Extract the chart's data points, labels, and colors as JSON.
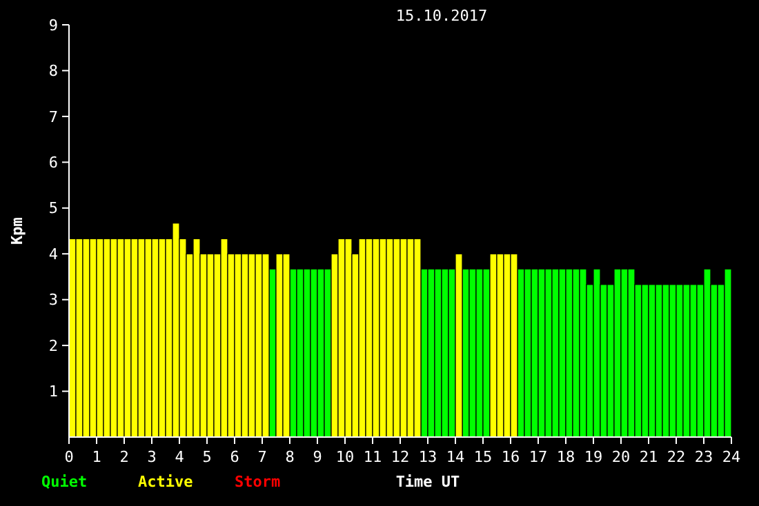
{
  "chart_data": {
    "type": "bar",
    "title": "15.10.2017",
    "xlabel": "Time UT",
    "ylabel": "Kpm",
    "x": [
      0.125,
      0.375,
      0.625,
      0.875,
      1.125,
      1.375,
      1.625,
      1.875,
      2.125,
      2.375,
      2.625,
      2.875,
      3.125,
      3.375,
      3.625,
      3.875,
      4.125,
      4.375,
      4.625,
      4.875,
      5.125,
      5.375,
      5.625,
      5.875,
      6.125,
      6.375,
      6.625,
      6.875,
      7.125,
      7.375,
      7.625,
      7.875,
      8.125,
      8.375,
      8.625,
      8.875,
      9.125,
      9.375,
      9.625,
      9.875,
      10.125,
      10.375,
      10.625,
      10.875,
      11.125,
      11.375,
      11.625,
      11.875,
      12.125,
      12.375,
      12.625,
      12.875,
      13.125,
      13.375,
      13.625,
      13.875,
      14.125,
      14.375,
      14.625,
      14.875,
      15.125,
      15.375,
      15.625,
      15.875,
      16.125,
      16.375,
      16.625,
      16.875,
      17.125,
      17.375,
      17.625,
      17.875,
      18.125,
      18.375,
      18.625,
      18.875,
      19.125,
      19.375,
      19.625,
      19.875,
      20.125,
      20.375,
      20.625,
      20.875,
      21.125,
      21.375,
      21.625,
      21.875,
      22.125,
      22.375,
      22.625,
      22.875,
      23.125,
      23.375,
      23.625,
      23.875
    ],
    "series": [
      {
        "name": "Quiet",
        "color": "#00ff00",
        "values": [
          null,
          null,
          null,
          null,
          null,
          null,
          null,
          null,
          null,
          null,
          null,
          null,
          null,
          null,
          null,
          null,
          null,
          null,
          null,
          null,
          null,
          null,
          null,
          null,
          null,
          null,
          null,
          null,
          null,
          3.67,
          null,
          null,
          3.67,
          3.67,
          3.67,
          3.67,
          3.67,
          3.67,
          null,
          null,
          null,
          null,
          null,
          null,
          null,
          null,
          null,
          null,
          null,
          null,
          null,
          3.67,
          3.67,
          3.67,
          3.67,
          3.67,
          null,
          3.67,
          3.67,
          3.67,
          3.67,
          null,
          null,
          null,
          null,
          3.67,
          3.67,
          3.67,
          3.67,
          3.67,
          3.67,
          3.67,
          3.67,
          3.67,
          3.67,
          3.33,
          3.67,
          3.33,
          3.33,
          3.67,
          3.67,
          3.67,
          3.33,
          3.33,
          3.33,
          3.33,
          3.33,
          3.33,
          3.33,
          3.33,
          3.33,
          3.33,
          3.67,
          3.33,
          3.33,
          3.67
        ]
      },
      {
        "name": "Active",
        "color": "#ffff00",
        "values": [
          4.33,
          4.33,
          4.33,
          4.33,
          4.33,
          4.33,
          4.33,
          4.33,
          4.33,
          4.33,
          4.33,
          4.33,
          4.33,
          4.33,
          4.33,
          4.67,
          4.33,
          4.0,
          4.33,
          4.0,
          4.0,
          4.0,
          4.33,
          4.0,
          4.0,
          4.0,
          4.0,
          4.0,
          4.0,
          null,
          4.0,
          4.0,
          null,
          null,
          null,
          null,
          null,
          null,
          4.0,
          4.33,
          4.33,
          4.0,
          4.33,
          4.33,
          4.33,
          4.33,
          4.33,
          4.33,
          4.33,
          4.33,
          4.33,
          null,
          null,
          null,
          null,
          null,
          4.0,
          null,
          null,
          null,
          null,
          4.0,
          4.0,
          4.0,
          4.0,
          null,
          null,
          null,
          null,
          null,
          null,
          null,
          null,
          null,
          null,
          null,
          null,
          null,
          null,
          null,
          null,
          null,
          null,
          null,
          null,
          null,
          null,
          null,
          null,
          null,
          null,
          null,
          null,
          null,
          null,
          null
        ]
      },
      {
        "name": "Storm",
        "color": "#ff0000",
        "values": [
          null,
          null,
          null,
          null,
          null,
          null,
          null,
          null,
          null,
          null,
          null,
          null,
          null,
          null,
          null,
          null,
          null,
          null,
          null,
          null,
          null,
          null,
          null,
          null,
          null,
          null,
          null,
          null,
          null,
          null,
          null,
          null,
          null,
          null,
          null,
          null,
          null,
          null,
          null,
          null,
          null,
          null,
          null,
          null,
          null,
          null,
          null,
          null,
          null,
          null,
          null,
          null,
          null,
          null,
          null,
          null,
          null,
          null,
          null,
          null,
          null,
          null,
          null,
          null,
          null,
          null,
          null,
          null,
          null,
          null,
          null,
          null,
          null,
          null,
          null,
          null,
          null,
          null,
          null,
          null,
          null,
          null,
          null,
          null,
          null,
          null,
          null,
          null,
          null,
          null,
          null,
          null,
          null,
          null,
          null,
          null
        ]
      }
    ],
    "xlim": [
      0,
      24
    ],
    "xticks": [
      0,
      1,
      2,
      3,
      4,
      5,
      6,
      7,
      8,
      9,
      10,
      11,
      12,
      13,
      14,
      15,
      16,
      17,
      18,
      19,
      20,
      21,
      22,
      23,
      24
    ],
    "ylim": [
      0,
      9
    ],
    "yticks": [
      1,
      2,
      3,
      4,
      5,
      6,
      7,
      8,
      9
    ],
    "legend": "bottom left"
  }
}
